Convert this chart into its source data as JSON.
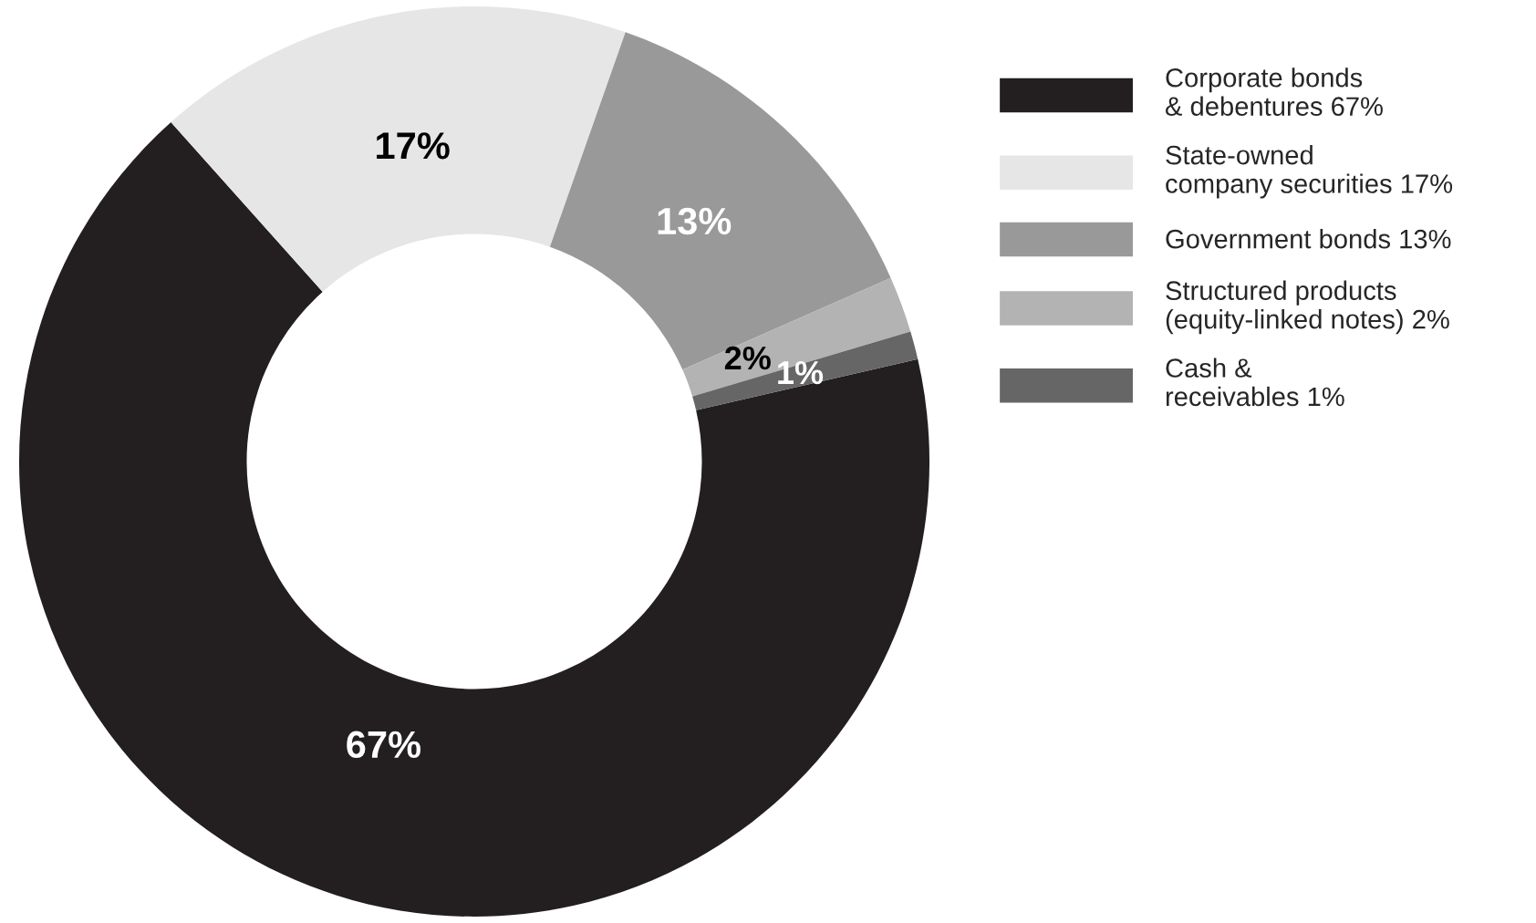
{
  "chart_data": {
    "type": "donut",
    "categories": [
      "Corporate bonds\n& debentures 67%",
      "State-owned\ncompany securities 17%",
      "Government bonds 13%",
      "Structured products\n(equity-linked notes) 2%",
      "Cash &\nreceivables 1%"
    ],
    "values": [
      67,
      17,
      13,
      2,
      1
    ],
    "colors": [
      "#231f20",
      "#e6e6e6",
      "#999999",
      "#b3b3b3",
      "#666666"
    ],
    "value_labels": [
      "67%",
      "17%",
      "13%",
      "2%",
      "1%"
    ],
    "legend": "right"
  }
}
